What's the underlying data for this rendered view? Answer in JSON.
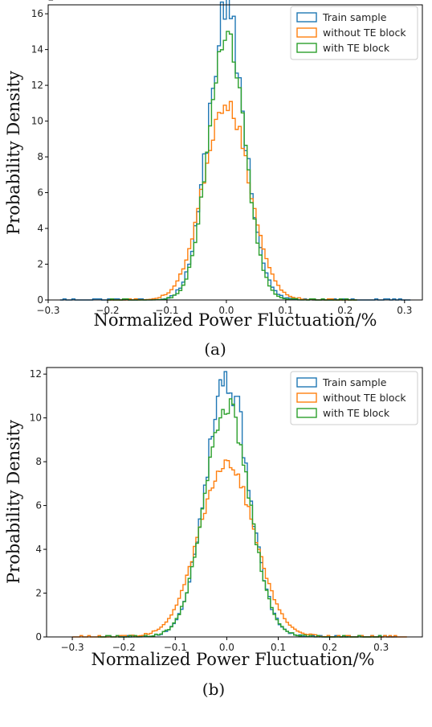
{
  "header_fragment": "p",
  "chart_data": [
    {
      "type": "step-histogram",
      "caption": "(a)",
      "xlabel": "Normalized Power Fluctuation/%",
      "ylabel": "Probability Density",
      "xlim": [
        -0.3,
        0.33
      ],
      "ylim": [
        0,
        16.5
      ],
      "xticks": [
        -0.3,
        -0.2,
        -0.1,
        0.0,
        0.1,
        0.2,
        0.3
      ],
      "xtick_labels": [
        "−0.3",
        "−0.2",
        "−0.1",
        "0.0",
        "0.1",
        "0.2",
        "0.3"
      ],
      "yticks": [
        0,
        2,
        4,
        6,
        8,
        10,
        12,
        14,
        16
      ],
      "ytick_labels": [
        "0",
        "2",
        "4",
        "6",
        "8",
        "10",
        "12",
        "14",
        "16"
      ],
      "legend_position": "top-right",
      "grid": false,
      "series": [
        {
          "name": "Train sample",
          "color": "#1f77b4",
          "peak": 15.8,
          "sigma": 0.031,
          "noise": 0.9,
          "seed": 11,
          "range": [
            -0.28,
            0.31
          ]
        },
        {
          "name": "without TE block",
          "color": "#ff7f0e",
          "peak": 11.1,
          "sigma": 0.038,
          "noise": 0.4,
          "seed": 23,
          "range": [
            -0.2,
            0.22
          ]
        },
        {
          "name": "with TE block",
          "color": "#2ca02c",
          "peak": 15.1,
          "sigma": 0.03,
          "noise": 0.5,
          "seed": 37,
          "range": [
            -0.2,
            0.22
          ]
        }
      ]
    },
    {
      "type": "step-histogram",
      "caption": "(b)",
      "xlabel": "Normalized Power Fluctuation/%",
      "ylabel": "Probability Density",
      "xlim": [
        -0.35,
        0.38
      ],
      "ylim": [
        0,
        12.3
      ],
      "xticks": [
        -0.3,
        -0.2,
        -0.1,
        0.0,
        0.1,
        0.2,
        0.3
      ],
      "xtick_labels": [
        "−0.3",
        "−0.2",
        "−0.1",
        "0.0",
        "0.1",
        "0.2",
        "0.3"
      ],
      "yticks": [
        0,
        2,
        4,
        6,
        8,
        10,
        12
      ],
      "ytick_labels": [
        "0",
        "2",
        "4",
        "6",
        "8",
        "10",
        "12"
      ],
      "legend_position": "top-right",
      "grid": false,
      "series": [
        {
          "name": "Train sample",
          "color": "#1f77b4",
          "peak": 11.85,
          "sigma": 0.042,
          "noise": 0.7,
          "seed": 5,
          "range": [
            -0.21,
            0.33
          ]
        },
        {
          "name": "without TE block",
          "color": "#ff7f0e",
          "peak": 8.0,
          "sigma": 0.053,
          "noise": 0.3,
          "seed": 17,
          "range": [
            -0.3,
            0.35
          ]
        },
        {
          "name": "with TE block",
          "color": "#2ca02c",
          "peak": 10.6,
          "sigma": 0.043,
          "noise": 0.4,
          "seed": 29,
          "range": [
            -0.25,
            0.3
          ]
        }
      ]
    }
  ]
}
